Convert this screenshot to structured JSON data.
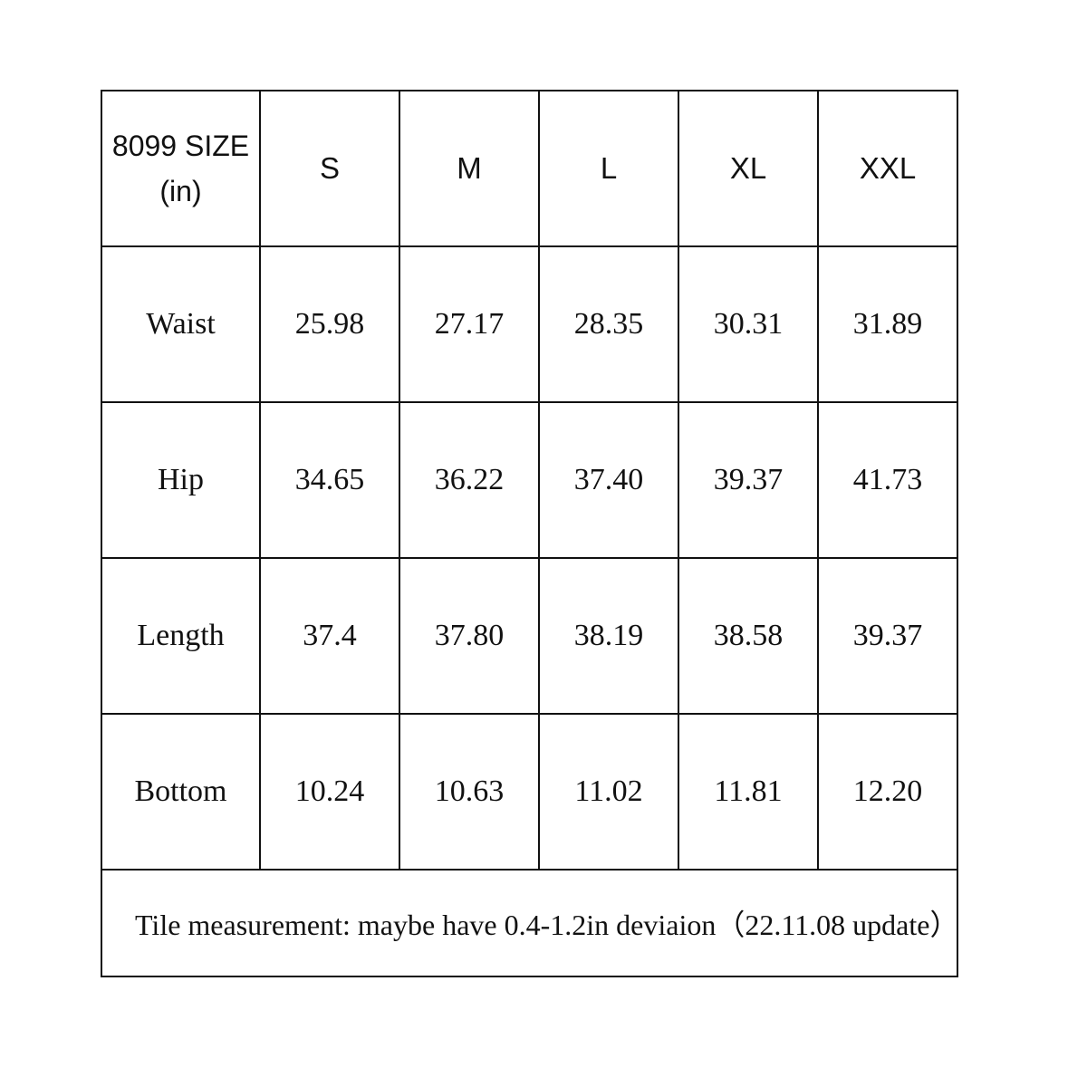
{
  "table": {
    "corner_line1": "8099 SIZE",
    "corner_line2": "(in)",
    "sizes": [
      "S",
      "M",
      "L",
      "XL",
      "XXL"
    ],
    "rows": [
      {
        "label": "Waist",
        "values": [
          "25.98",
          "27.17",
          "28.35",
          "30.31",
          "31.89"
        ]
      },
      {
        "label": "Hip",
        "values": [
          "34.65",
          "36.22",
          "37.40",
          "39.37",
          "41.73"
        ]
      },
      {
        "label": "Length",
        "values": [
          "37.4",
          "37.80",
          "38.19",
          "38.58",
          "39.37"
        ]
      },
      {
        "label": "Bottom",
        "values": [
          "10.24",
          "10.63",
          "11.02",
          "11.81",
          "12.20"
        ]
      }
    ],
    "note": "Tile measurement: maybe have 0.4-1.2in deviaion（22.11.08 update）"
  }
}
